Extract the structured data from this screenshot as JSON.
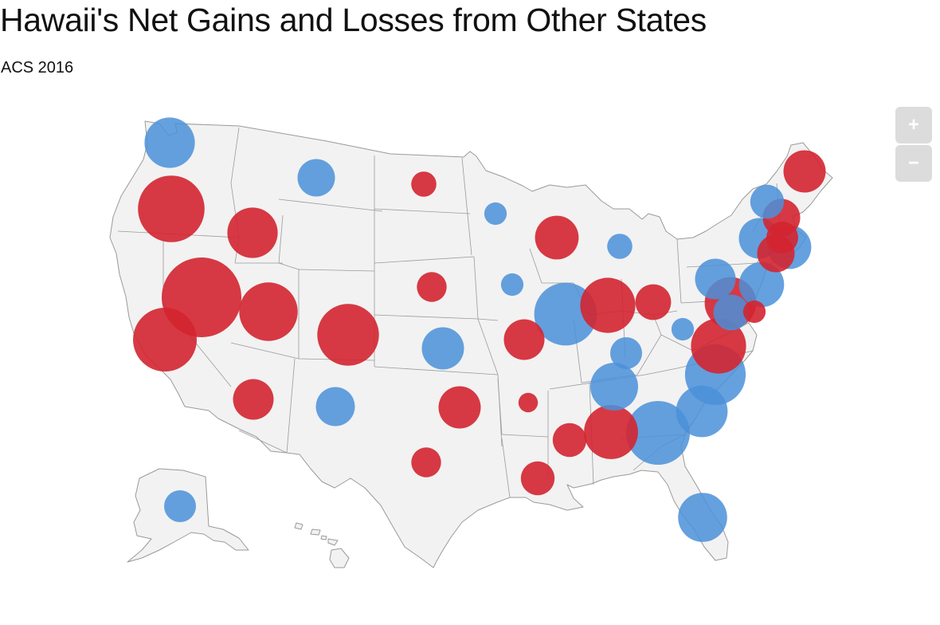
{
  "header": {
    "title": "Hawaii's Net Gains and Losses from Other States",
    "subtitle": "ACS 2016"
  },
  "controls": {
    "zoom_in_label": "+",
    "zoom_out_label": "−"
  },
  "colors": {
    "gain": "#d32530",
    "loss": "#4a90d9",
    "land": "#f2f2f2",
    "border": "#9a9a9a",
    "zoom_button": "#dcdcdc"
  },
  "map_data": {
    "type": "bubble-map",
    "region": "United States",
    "series": [
      {
        "state": "Washington",
        "type": "loss",
        "magnitude": 0.4
      },
      {
        "state": "Oregon",
        "type": "gain",
        "magnitude": 0.7
      },
      {
        "state": "Idaho",
        "type": "gain",
        "magnitude": 0.4
      },
      {
        "state": "Montana",
        "type": "loss",
        "magnitude": 0.22
      },
      {
        "state": "North Dakota",
        "type": "gain",
        "magnitude": 0.1
      },
      {
        "state": "Nevada",
        "type": "gain",
        "magnitude": 1.0
      },
      {
        "state": "California",
        "type": "gain",
        "magnitude": 0.64
      },
      {
        "state": "Utah",
        "type": "gain",
        "magnitude": 0.54
      },
      {
        "state": "Colorado",
        "type": "gain",
        "magnitude": 0.6
      },
      {
        "state": "Arizona",
        "type": "gain",
        "magnitude": 0.26
      },
      {
        "state": "New Mexico",
        "type": "loss",
        "magnitude": 0.24
      },
      {
        "state": "Minnesota",
        "type": "loss",
        "magnitude": 0.08
      },
      {
        "state": "Nebraska",
        "type": "gain",
        "magnitude": 0.14
      },
      {
        "state": "Kansas",
        "type": "loss",
        "magnitude": 0.28
      },
      {
        "state": "Oklahoma",
        "type": "gain",
        "magnitude": 0.28
      },
      {
        "state": "Texas",
        "type": "gain",
        "magnitude": 0.14
      },
      {
        "state": "Iowa",
        "type": "loss",
        "magnitude": 0.08
      },
      {
        "state": "Missouri",
        "type": "gain",
        "magnitude": 0.26
      },
      {
        "state": "Arkansas",
        "type": "gain",
        "magnitude": 0.06
      },
      {
        "state": "Louisiana",
        "type": "gain",
        "magnitude": 0.18
      },
      {
        "state": "Wisconsin",
        "type": "gain",
        "magnitude": 0.3
      },
      {
        "state": "Illinois",
        "type": "loss",
        "magnitude": 0.62
      },
      {
        "state": "Michigan",
        "type": "loss",
        "magnitude": 0.1
      },
      {
        "state": "Indiana",
        "type": "gain",
        "magnitude": 0.48
      },
      {
        "state": "Ohio",
        "type": "gain",
        "magnitude": 0.2
      },
      {
        "state": "Kentucky",
        "type": "loss",
        "magnitude": 0.16
      },
      {
        "state": "Tennessee",
        "type": "loss",
        "magnitude": 0.36
      },
      {
        "state": "Mississippi",
        "type": "gain",
        "magnitude": 0.18
      },
      {
        "state": "Alabama",
        "type": "gain",
        "magnitude": 0.46
      },
      {
        "state": "Georgia",
        "type": "loss",
        "magnitude": 0.64
      },
      {
        "state": "Florida",
        "type": "loss",
        "magnitude": 0.38
      },
      {
        "state": "South Carolina",
        "type": "loss",
        "magnitude": 0.42
      },
      {
        "state": "North Carolina",
        "type": "loss",
        "magnitude": 0.58
      },
      {
        "state": "Virginia",
        "type": "gain",
        "magnitude": 0.48
      },
      {
        "state": "West Virginia",
        "type": "loss",
        "magnitude": 0.08
      },
      {
        "state": "Pennsylvania",
        "type": "loss",
        "magnitude": 0.26
      },
      {
        "state": "Maryland",
        "type": "gain",
        "magnitude": 0.42
      },
      {
        "state": "District of Columbia",
        "type": "loss",
        "magnitude": 0.2
      },
      {
        "state": "Delaware",
        "type": "gain",
        "magnitude": 0.08
      },
      {
        "state": "New Jersey",
        "type": "loss",
        "magnitude": 0.32
      },
      {
        "state": "New York",
        "type": "loss",
        "magnitude": 0.26
      },
      {
        "state": "Connecticut",
        "type": "gain",
        "magnitude": 0.22
      },
      {
        "state": "Rhode Island",
        "type": "loss",
        "magnitude": 0.3
      },
      {
        "state": "Massachusetts",
        "type": "gain",
        "magnitude": 0.16
      },
      {
        "state": "Vermont",
        "type": "loss",
        "magnitude": 0.18
      },
      {
        "state": "New Hampshire",
        "type": "gain",
        "magnitude": 0.22
      },
      {
        "state": "Maine",
        "type": "gain",
        "magnitude": 0.28
      },
      {
        "state": "Alaska",
        "type": "loss",
        "magnitude": 0.16
      }
    ]
  }
}
